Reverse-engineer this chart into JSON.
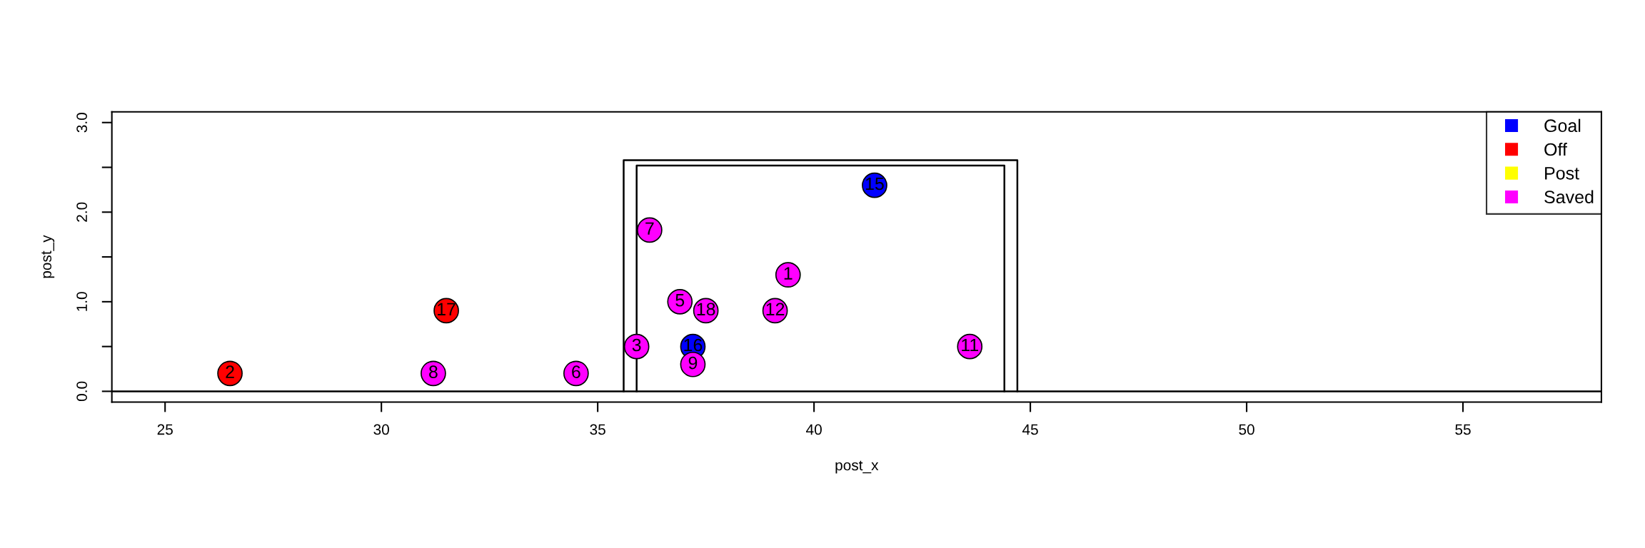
{
  "chart_data": {
    "type": "scatter",
    "xlabel": "post_x",
    "ylabel": "post_y",
    "xlim": [
      23.77,
      58.2
    ],
    "ylim": [
      -0.12,
      3.12
    ],
    "xticks": [
      25,
      30,
      35,
      40,
      45,
      50,
      55
    ],
    "yticks": [
      {
        "value": 0,
        "label": "0.0"
      },
      {
        "value": 0.5,
        "label": null
      },
      {
        "value": 1,
        "label": "1.0"
      },
      {
        "value": 1.5,
        "label": null
      },
      {
        "value": 2,
        "label": "2.0"
      },
      {
        "value": 2.5,
        "label": null
      },
      {
        "value": 3,
        "label": "3.0"
      }
    ],
    "legend": "top right",
    "grid": false,
    "series": [
      {
        "name": "Goal",
        "color": "#0000ff",
        "marker": "circle",
        "x": [
          41.4,
          37.2
        ],
        "values": [
          2.3,
          0.5
        ]
      },
      {
        "name": "Off",
        "color": "#ff0000",
        "marker": "circle",
        "x": [
          26.5,
          31.5
        ],
        "values": [
          0.2,
          0.9
        ]
      },
      {
        "name": "Post",
        "color": "#ffff00"
      },
      {
        "name": "Saved",
        "color": "#ff00ff",
        "marker": "circle",
        "x": [
          39.4,
          35.9,
          36.9,
          34.5,
          36.2,
          31.2,
          37.2,
          43.6,
          39.1,
          37.5
        ],
        "values": [
          1.3,
          0.5,
          1.0,
          0.2,
          1.8,
          0.2,
          0.3,
          0.5,
          0.9,
          0.9
        ]
      },
      {
        "type": "line",
        "color": "#000000",
        "marker": "none",
        "x": [
          35.6,
          35.6,
          44.7,
          44.7
        ],
        "values": [
          0,
          2.58,
          2.58,
          0
        ]
      },
      {
        "type": "line",
        "color": "#000000",
        "marker": "none",
        "x": [
          35.9,
          35.9,
          44.4,
          44.4
        ],
        "values": [
          0,
          2.52,
          2.52,
          0
        ]
      }
    ],
    "ref_lines": [
      {
        "axis": "y",
        "value": 0,
        "color": "#000000"
      }
    ],
    "annotations": [
      {
        "text": "1",
        "x": 39.4,
        "y": 1.3
      },
      {
        "text": "2",
        "x": 26.5,
        "y": 0.2
      },
      {
        "text": "3",
        "x": 35.9,
        "y": 0.5
      },
      {
        "text": "5",
        "x": 36.9,
        "y": 1.0
      },
      {
        "text": "6",
        "x": 34.5,
        "y": 0.2
      },
      {
        "text": "7",
        "x": 36.2,
        "y": 1.8
      },
      {
        "text": "8",
        "x": 31.2,
        "y": 0.2
      },
      {
        "text": "9",
        "x": 37.2,
        "y": 0.3
      },
      {
        "text": "11",
        "x": 43.6,
        "y": 0.5
      },
      {
        "text": "12",
        "x": 39.1,
        "y": 0.9
      },
      {
        "text": "15",
        "x": 41.4,
        "y": 2.3
      },
      {
        "text": "16",
        "x": 37.2,
        "y": 0.5
      },
      {
        "text": "17",
        "x": 31.5,
        "y": 0.9
      },
      {
        "text": "18",
        "x": 37.5,
        "y": 0.9
      }
    ]
  }
}
